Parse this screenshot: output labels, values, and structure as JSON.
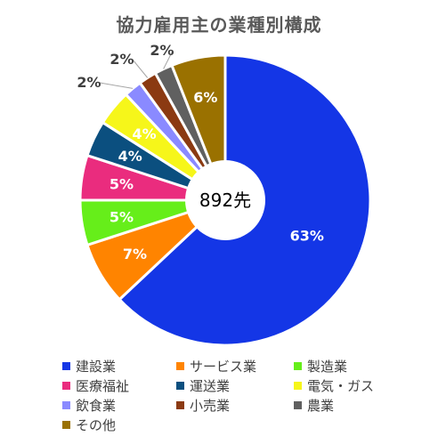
{
  "chart_data": {
    "type": "pie",
    "title": "協力雇用主の業種別構成",
    "center_label": "892先",
    "legend_position": "bottom",
    "slices": [
      {
        "name": "建設業",
        "value": 63,
        "label": "63%",
        "color": "#1436e6",
        "label_inside": true
      },
      {
        "name": "サービス業",
        "value": 7,
        "label": "7%",
        "color": "#ff8400",
        "label_inside": true
      },
      {
        "name": "製造業",
        "value": 5,
        "label": "5%",
        "color": "#66ee1a",
        "label_inside": true
      },
      {
        "name": "医療福祉",
        "value": 5,
        "label": "5%",
        "color": "#ea2c7e",
        "label_inside": true
      },
      {
        "name": "運送業",
        "value": 4,
        "label": "4%",
        "color": "#0b4f7f",
        "label_inside": true
      },
      {
        "name": "電気・ガス",
        "value": 4,
        "label": "4%",
        "color": "#f6f61a",
        "label_inside": true
      },
      {
        "name": "飲食業",
        "value": 2,
        "label": "2%",
        "color": "#8a8aff",
        "label_inside": false
      },
      {
        "name": "小売業",
        "value": 2,
        "label": "2%",
        "color": "#8b3a12",
        "label_inside": false
      },
      {
        "name": "農業",
        "value": 2,
        "label": "2%",
        "color": "#606060",
        "label_inside": false
      },
      {
        "name": "その他",
        "value": 6,
        "label": "6%",
        "color": "#9a7100",
        "label_inside": true
      }
    ]
  }
}
